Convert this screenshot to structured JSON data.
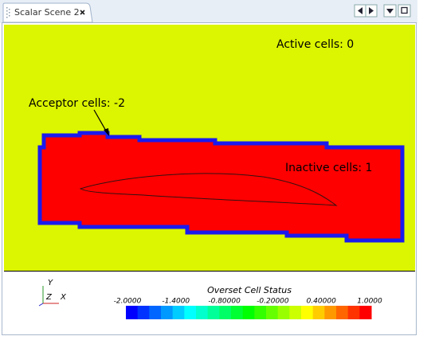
{
  "tab": {
    "title": "Scalar Scene 2"
  },
  "scene": {
    "annotations": {
      "active": "Active cells: 0",
      "acceptor": "Acceptor cells: -2",
      "inactive": "Inactive cells: 1"
    },
    "triad": {
      "y": "Y",
      "z": "Z",
      "x": "X"
    },
    "colorbar": {
      "title": "Overset Cell Status",
      "labels": [
        "-2.0000",
        "-1.4000",
        "-0.80000",
        "-0.20000",
        "0.40000",
        "1.0000"
      ]
    }
  }
}
